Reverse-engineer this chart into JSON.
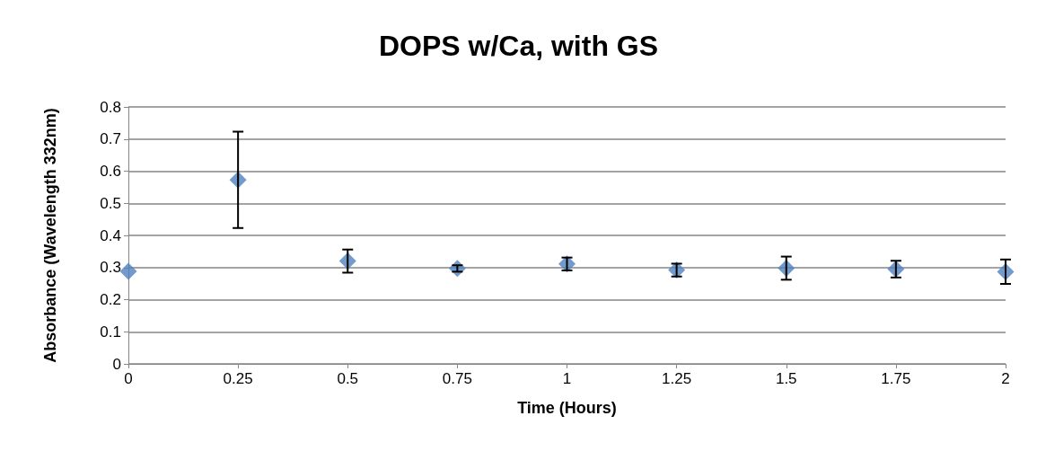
{
  "chart_data": {
    "type": "scatter",
    "title": "DOPS w/Ca, with GS",
    "xlabel": "Time (Hours)",
    "ylabel": "Absorbance (Wavelength 332nm)",
    "x": [
      0,
      0.25,
      0.5,
      0.75,
      1,
      1.25,
      1.5,
      1.75,
      2
    ],
    "series": [
      {
        "color": "#4f81bd",
        "values": [
          0.288,
          0.573,
          0.32,
          0.297,
          0.311,
          0.292,
          0.298,
          0.295,
          0.287
        ],
        "errors": [
          null,
          0.15,
          0.036,
          0.01,
          0.02,
          0.02,
          0.036,
          0.026,
          0.038
        ]
      }
    ],
    "xlim": [
      0,
      2
    ],
    "xticks": [
      0,
      0.25,
      0.5,
      0.75,
      1,
      1.25,
      1.5,
      1.75,
      2
    ],
    "ylim": [
      0,
      0.8
    ],
    "yticks": [
      0,
      0.1,
      0.2,
      0.3,
      0.4,
      0.5,
      0.6,
      0.7,
      0.8
    ],
    "grid": "y",
    "marker": "diamond"
  }
}
